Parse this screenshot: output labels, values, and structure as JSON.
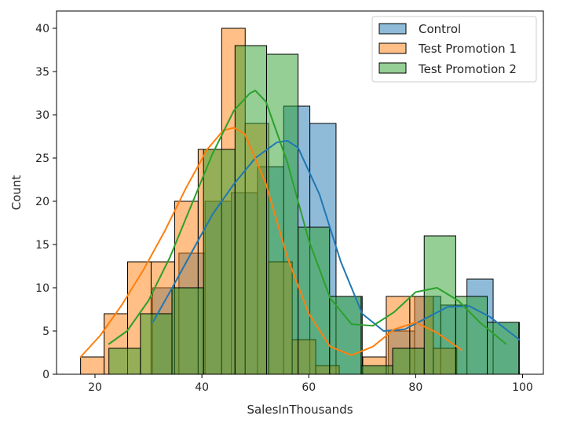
{
  "chart_data": {
    "type": "histogram",
    "xlabel": "SalesInThousands",
    "ylabel": "Count",
    "xlim": [
      12.8,
      103.9
    ],
    "ylim": [
      0,
      42
    ],
    "xticks": [
      20,
      40,
      60,
      80,
      100
    ],
    "yticks": [
      0,
      5,
      10,
      15,
      20,
      25,
      30,
      35,
      40
    ],
    "legend": {
      "placement": "top-right"
    },
    "series": [
      {
        "name": "Control",
        "color": "#1f77b4",
        "bin_edges": [
          30.8,
          35.7,
          40.6,
          45.5,
          50.4,
          55.3,
          60.2,
          65.1,
          70.0,
          74.9,
          79.8,
          84.7,
          89.6,
          94.5,
          99.4
        ],
        "counts": [
          10,
          14,
          20,
          21,
          24,
          31,
          29,
          9,
          1,
          5,
          9,
          8,
          11,
          6
        ],
        "kde_x": [
          30.8,
          34,
          38,
          42,
          46,
          50,
          54,
          56,
          58,
          62,
          66,
          70,
          74,
          78,
          82,
          86,
          90,
          94,
          99.4
        ],
        "kde_y": [
          6.0,
          9.5,
          14.0,
          18.5,
          22.0,
          25.0,
          26.8,
          27.0,
          26.2,
          20.8,
          13.0,
          7.0,
          5.0,
          5.2,
          6.5,
          7.8,
          7.9,
          6.6,
          4.0
        ]
      },
      {
        "name": "Test Promotion 1",
        "color": "#ff7f0e",
        "bin_edges": [
          17.3,
          21.7,
          26.1,
          30.5,
          34.9,
          39.3,
          43.7,
          48.1,
          52.5,
          56.9,
          61.3,
          65.7,
          70.1,
          74.5,
          78.9,
          83.3,
          87.7
        ],
        "counts": [
          2,
          7,
          13,
          13,
          20,
          26,
          40,
          29,
          13,
          4,
          1,
          0,
          2,
          9,
          9,
          3
        ],
        "kde_x": [
          17.3,
          21,
          25,
          29,
          33,
          37,
          41,
          44,
          46,
          48,
          52,
          56,
          60,
          64,
          68,
          72,
          76,
          80,
          84,
          88.6
        ],
        "kde_y": [
          2.0,
          4.5,
          8.0,
          12.0,
          16.5,
          21.5,
          26.0,
          28.2,
          28.5,
          27.8,
          22.0,
          13.5,
          7.0,
          3.2,
          2.2,
          3.2,
          5.2,
          6.0,
          4.8,
          2.8
        ]
      },
      {
        "name": "Test Promotion 2",
        "color": "#2ca02c",
        "bin_edges": [
          22.6,
          28.5,
          34.4,
          40.3,
          46.2,
          52.1,
          58.0,
          63.9,
          69.8,
          75.7,
          81.6,
          87.5,
          93.4,
          99.3
        ],
        "counts": [
          3,
          7,
          10,
          26,
          38,
          37,
          17,
          9,
          1,
          3,
          16,
          9,
          6
        ],
        "kde_x": [
          22.6,
          26,
          30,
          34,
          38,
          42,
          46,
          49,
          50,
          52,
          56,
          60,
          64,
          68,
          72,
          76,
          80,
          84,
          88,
          92,
          96.9
        ],
        "kde_y": [
          3.5,
          5.0,
          8.5,
          13.5,
          19.5,
          25.5,
          30.5,
          32.5,
          32.8,
          31.5,
          24.5,
          15.5,
          8.8,
          5.8,
          5.6,
          7.2,
          9.5,
          10.0,
          8.5,
          6.0,
          3.5
        ]
      }
    ]
  }
}
